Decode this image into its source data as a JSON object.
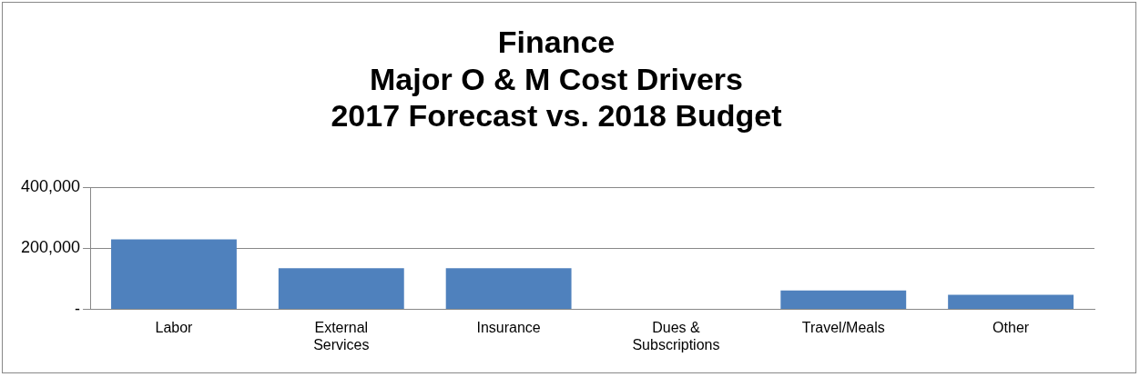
{
  "chart_data": {
    "type": "bar",
    "title": "Finance\nMajor O & M Cost Drivers\n2017 Forecast vs. 2018 Budget",
    "categories": [
      "Labor",
      "External Services",
      "Insurance",
      "Dues & Subscriptions",
      "Travel/Meals",
      "Other"
    ],
    "values": [
      230000,
      135000,
      135000,
      0,
      62000,
      48000
    ],
    "color": "#4f81bd",
    "ylim": [
      0,
      400000
    ],
    "yticks": [
      {
        "value": 0,
        "label": "-"
      },
      {
        "value": 200000,
        "label": "200,000"
      },
      {
        "value": 400000,
        "label": "400,000"
      }
    ],
    "grid": "y",
    "legend": false
  }
}
